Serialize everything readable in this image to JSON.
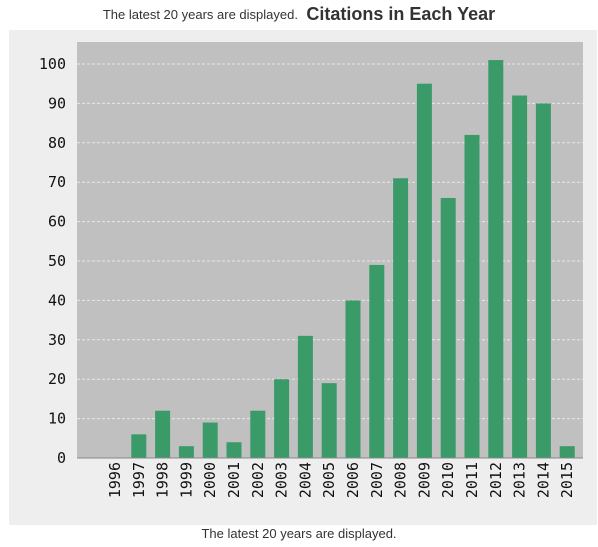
{
  "header": {
    "subtitle": "The latest 20 years are displayed.",
    "title": "Citations in Each Year"
  },
  "footer": {
    "note": "The latest 20 years are displayed."
  },
  "colors": {
    "bar": "#3a9a68",
    "plot_bg": "#c0c0c0",
    "outer_bg": "#eeeeee",
    "grid": "#e8e8e8"
  },
  "chart_data": {
    "type": "bar",
    "title": "Citations in Each Year",
    "subtitle": "The latest 20 years are displayed.",
    "xlabel": "",
    "ylabel": "",
    "categories": [
      "1996",
      "1997",
      "1998",
      "1999",
      "2000",
      "2001",
      "2002",
      "2003",
      "2004",
      "2005",
      "2006",
      "2007",
      "2008",
      "2009",
      "2010",
      "2011",
      "2012",
      "2013",
      "2014",
      "2015"
    ],
    "values": [
      0,
      6,
      12,
      3,
      9,
      4,
      12,
      20,
      31,
      19,
      40,
      49,
      71,
      95,
      66,
      82,
      101,
      92,
      90,
      3
    ],
    "ylim": [
      0,
      105
    ],
    "yticks": [
      "0",
      "10",
      "20",
      "30",
      "40",
      "50",
      "60",
      "70",
      "80",
      "90",
      "100"
    ],
    "grid": true,
    "legend": "none"
  }
}
